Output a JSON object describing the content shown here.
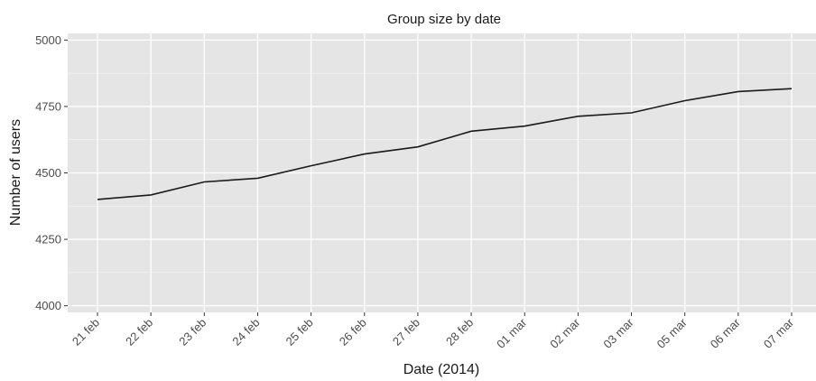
{
  "chart_data": {
    "type": "line",
    "title": "Group size by date",
    "xlabel": "Date (2014)",
    "ylabel": "Number of users",
    "categories": [
      "21 feb",
      "22 feb",
      "23 feb",
      "24 feb",
      "25 feb",
      "26 feb",
      "27 feb",
      "28 feb",
      "01 mar",
      "02 mar",
      "03 mar",
      "05 mar",
      "06 mar",
      "07 mar"
    ],
    "series": [
      {
        "values": [
          4400,
          4417,
          4466,
          4480,
          4527,
          4571,
          4598,
          4657,
          4676,
          4713,
          4726,
          4772,
          4806,
          4817
        ]
      }
    ],
    "yticks": [
      4000,
      4250,
      4500,
      4750,
      5000
    ],
    "ylim": [
      3975,
      5025
    ],
    "grid": true,
    "legend": "none",
    "colors": {
      "panel": "#e5e5e5",
      "grid_major": "#ffffff",
      "line": "#1a1a1a",
      "tick_text": "#4d4d4d"
    }
  }
}
